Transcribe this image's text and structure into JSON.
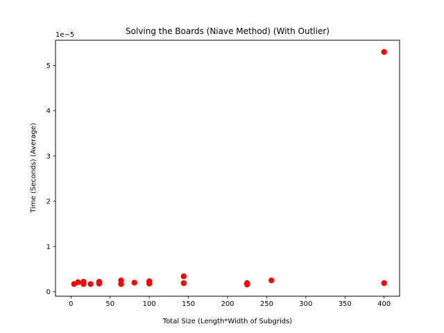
{
  "chart_data": {
    "type": "scatter",
    "title": "Solving the Boards (Niave Method) (With Outlier)",
    "xlabel": "Total Size (Length*Width of Subgrids)",
    "ylabel": "Time (Seconds) (Average)",
    "y_offset_label": "1e−5",
    "xlim": [
      -19.8,
      419.8
    ],
    "ylim": [
      -0.1,
      5.56
    ],
    "y_scale_factor": "1e-5",
    "x_ticks": [
      0,
      50,
      100,
      150,
      200,
      250,
      300,
      350,
      400
    ],
    "x_tick_labels": [
      "0",
      "50",
      "100",
      "150",
      "200",
      "250",
      "300",
      "350",
      "400"
    ],
    "y_ticks": [
      0,
      1,
      2,
      3,
      4,
      5
    ],
    "y_tick_labels": [
      "0",
      "1",
      "2",
      "3",
      "4",
      "5"
    ],
    "grid": false,
    "marker_color": "#ff0000",
    "points": [
      {
        "x": 4,
        "y": 0.17
      },
      {
        "x": 9,
        "y": 0.21
      },
      {
        "x": 16,
        "y": 0.22
      },
      {
        "x": 16,
        "y": 0.17
      },
      {
        "x": 25,
        "y": 0.17
      },
      {
        "x": 36,
        "y": 0.22
      },
      {
        "x": 36,
        "y": 0.18
      },
      {
        "x": 64,
        "y": 0.25
      },
      {
        "x": 64,
        "y": 0.17
      },
      {
        "x": 81,
        "y": 0.2
      },
      {
        "x": 100,
        "y": 0.23
      },
      {
        "x": 100,
        "y": 0.18
      },
      {
        "x": 144,
        "y": 0.34
      },
      {
        "x": 144,
        "y": 0.19
      },
      {
        "x": 225,
        "y": 0.19
      },
      {
        "x": 225,
        "y": 0.16
      },
      {
        "x": 256,
        "y": 0.25
      },
      {
        "x": 400,
        "y": 5.3
      },
      {
        "x": 400,
        "y": 0.19
      }
    ]
  }
}
